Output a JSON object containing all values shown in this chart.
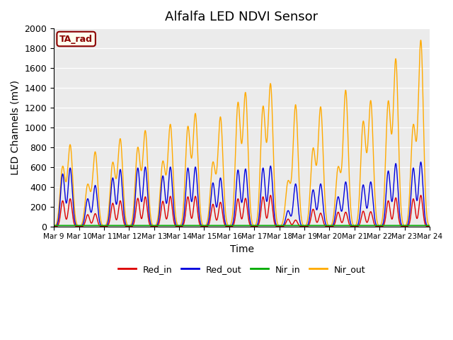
{
  "title": "Alfalfa LED NDVI Sensor",
  "xlabel": "Time",
  "ylabel": "LED Channels (mV)",
  "ylim": [
    0,
    2000
  ],
  "xlim_days": [
    9,
    24
  ],
  "xtick_labels": [
    "Mar 9",
    "Mar 10",
    "Mar 11",
    "Mar 12",
    "Mar 13",
    "Mar 14",
    "Mar 15",
    "Mar 16",
    "Mar 17",
    "Mar 18",
    "Mar 19",
    "Mar 20",
    "Mar 21",
    "Mar 22",
    "Mar 23",
    "Mar 24"
  ],
  "annotation_text": "TA_rad",
  "annotation_bg": "#ffffee",
  "annotation_border": "#8b0000",
  "bg_color": "#ebebeb",
  "line_colors": {
    "Red_in": "#dd0000",
    "Red_out": "#0000dd",
    "Nir_in": "#00aa00",
    "Nir_out": "#ffaa00"
  },
  "peak_days": [
    9,
    10,
    11,
    12,
    13,
    14,
    15,
    16,
    17,
    18,
    19,
    20,
    21,
    22,
    23
  ],
  "nir_out_peaks1": [
    600,
    420,
    640,
    790,
    650,
    1000,
    640,
    1240,
    1200,
    450,
    780,
    590,
    1050,
    1250,
    1010
  ],
  "nir_out_peaks2": [
    820,
    750,
    880,
    960,
    1025,
    1130,
    1100,
    1340,
    1430,
    1225,
    1200,
    1370,
    1260,
    1680,
    1870
  ],
  "red_out_peaks1": [
    530,
    280,
    490,
    590,
    510,
    590,
    440,
    570,
    590,
    160,
    370,
    300,
    420,
    560,
    590
  ],
  "red_out_peaks2": [
    590,
    415,
    575,
    600,
    600,
    600,
    490,
    580,
    610,
    430,
    430,
    450,
    450,
    635,
    650
  ],
  "red_in_peaks1": [
    260,
    120,
    235,
    285,
    255,
    300,
    225,
    280,
    300,
    75,
    175,
    145,
    155,
    260,
    280
  ],
  "red_in_peaks2": [
    280,
    130,
    260,
    300,
    305,
    305,
    245,
    285,
    315,
    65,
    135,
    145,
    150,
    290,
    315
  ],
  "nir_in_val": 10
}
